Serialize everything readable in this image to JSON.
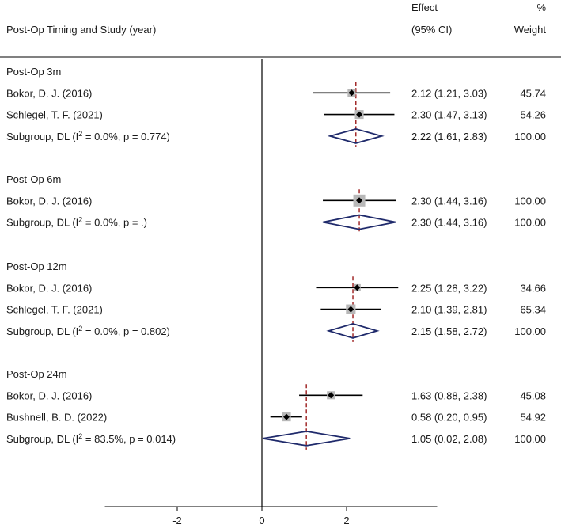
{
  "chart_data": {
    "type": "forest",
    "header": {
      "study_col": "Post-Op Timing and Study (year)",
      "effect_line1": "Effect",
      "effect_line2": "(95% CI)",
      "weight_line1": "%",
      "weight_line2": "Weight"
    },
    "x_ticks": [
      -2,
      0,
      2
    ],
    "x_tick_labels": [
      "-2",
      "0",
      "2"
    ],
    "x_range": [
      -3.71,
      4.14
    ],
    "no_effect_line": 0,
    "colors": {
      "ci_line": "#000000",
      "box": "#b8b8b8",
      "point": "#000000",
      "diamond": "#1f2a6b",
      "pooled_line": "#9b1b1b"
    },
    "groups": [
      {
        "name": "Post-Op 3m",
        "pooled": 2.22,
        "studies": [
          {
            "label": "Bokor, D. J. (2016)",
            "est": 2.12,
            "lo": 1.21,
            "hi": 3.03,
            "ci_text": "2.12 (1.21, 3.03)",
            "weight": 45.74,
            "weight_text": "45.74"
          },
          {
            "label": "Schlegel, T. F. (2021)",
            "est": 2.3,
            "lo": 1.47,
            "hi": 3.13,
            "ci_text": "2.30 (1.47, 3.13)",
            "weight": 54.26,
            "weight_text": "54.26"
          }
        ],
        "subgroup": {
          "label_prefix": "Subgroup, DL (I",
          "label_sup": "2",
          "label_suffix": " = 0.0%, p = 0.774)",
          "est": 2.22,
          "lo": 1.61,
          "hi": 2.83,
          "ci_text": "2.22 (1.61, 2.83)",
          "weight_text": "100.00"
        }
      },
      {
        "name": "Post-Op 6m",
        "pooled": 2.3,
        "studies": [
          {
            "label": "Bokor, D. J. (2016)",
            "est": 2.3,
            "lo": 1.44,
            "hi": 3.16,
            "ci_text": "2.30 (1.44, 3.16)",
            "weight": 100.0,
            "weight_text": "100.00"
          }
        ],
        "subgroup": {
          "label_prefix": "Subgroup, DL (I",
          "label_sup": "2",
          "label_suffix": " = 0.0%, p = .)",
          "est": 2.3,
          "lo": 1.44,
          "hi": 3.16,
          "ci_text": "2.30 (1.44, 3.16)",
          "weight_text": "100.00"
        }
      },
      {
        "name": "Post-Op 12m",
        "pooled": 2.15,
        "studies": [
          {
            "label": "Bokor, D. J. (2016)",
            "est": 2.25,
            "lo": 1.28,
            "hi": 3.22,
            "ci_text": "2.25 (1.28, 3.22)",
            "weight": 34.66,
            "weight_text": "34.66"
          },
          {
            "label": "Schlegel, T. F. (2021)",
            "est": 2.1,
            "lo": 1.39,
            "hi": 2.81,
            "ci_text": "2.10 (1.39, 2.81)",
            "weight": 65.34,
            "weight_text": "65.34"
          }
        ],
        "subgroup": {
          "label_prefix": "Subgroup, DL (I",
          "label_sup": "2",
          "label_suffix": " = 0.0%, p = 0.802)",
          "est": 2.15,
          "lo": 1.58,
          "hi": 2.72,
          "ci_text": "2.15 (1.58, 2.72)",
          "weight_text": "100.00"
        }
      },
      {
        "name": "Post-Op 24m",
        "pooled": 1.05,
        "studies": [
          {
            "label": "Bokor, D. J. (2016)",
            "est": 1.63,
            "lo": 0.88,
            "hi": 2.38,
            "ci_text": "1.63 (0.88, 2.38)",
            "weight": 45.08,
            "weight_text": "45.08"
          },
          {
            "label": "Bushnell, B. D. (2022)",
            "est": 0.58,
            "lo": 0.2,
            "hi": 0.95,
            "ci_text": "0.58 (0.20, 0.95)",
            "weight": 54.92,
            "weight_text": "54.92"
          }
        ],
        "subgroup": {
          "label_prefix": "Subgroup, DL (I",
          "label_sup": "2",
          "label_suffix": " = 83.5%, p = 0.014)",
          "est": 1.05,
          "lo": 0.02,
          "hi": 2.08,
          "ci_text": "1.05 (0.02, 2.08)",
          "weight_text": "100.00"
        }
      }
    ]
  }
}
